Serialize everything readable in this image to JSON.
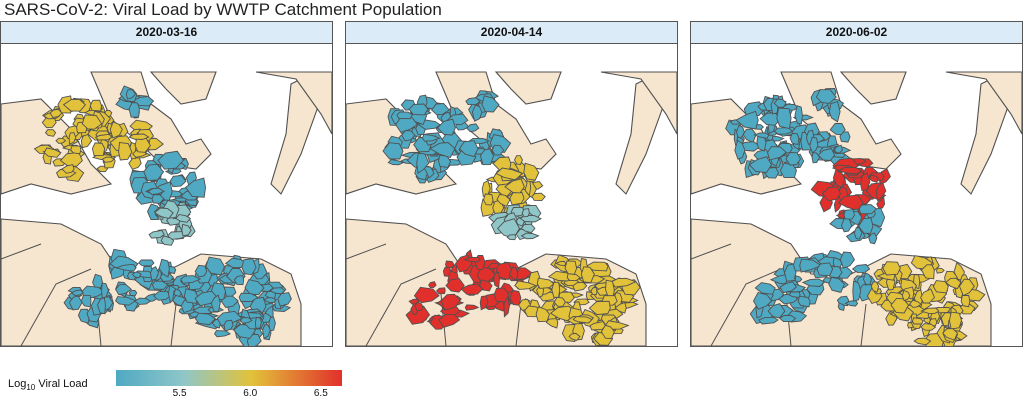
{
  "title": "SARS-CoV-2: Viral Load by WWTP Catchment Population",
  "colors": {
    "land": "#f6e5cf",
    "water": "#ffffff",
    "border": "#505050",
    "low": "#4fa9c3",
    "mid_low": "#8fc6c8",
    "mid": "#e2c23a",
    "high": "#e1302b",
    "strip": "#dcebf8"
  },
  "panels": [
    {
      "date": "2020-03-16",
      "peninsula": "yellow",
      "upper": "teal",
      "south": "teal",
      "south_east": "teal"
    },
    {
      "date": "2020-04-14",
      "peninsula": "teal",
      "upper": "yellow",
      "south": "red",
      "south_east": "yellow"
    },
    {
      "date": "2020-06-02",
      "peninsula": "teal",
      "upper": "red",
      "south": "teal",
      "south_east": "yellow"
    }
  ],
  "legend": {
    "title_prefix": "Log",
    "title_sub": "10",
    "title_suffix": " Viral Load",
    "ticks": [
      "5.5",
      "6.0",
      "6.5"
    ],
    "tick_values": [
      5.5,
      6.0,
      6.5
    ],
    "range": [
      5.05,
      6.65
    ]
  }
}
